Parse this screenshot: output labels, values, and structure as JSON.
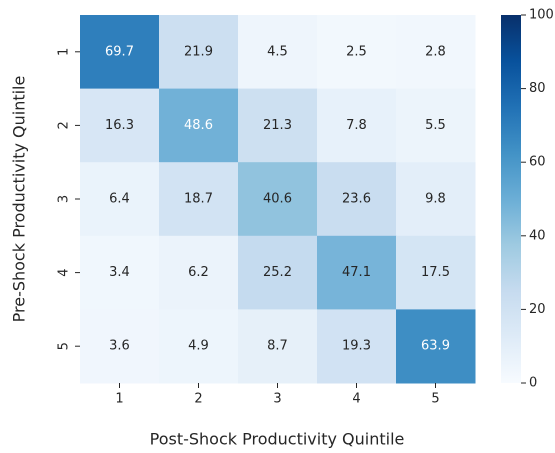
{
  "chart_data": {
    "type": "heatmap",
    "x_label": "Post-Shock Productivity Quintile",
    "y_label": "Pre-Shock Productivity Quintile",
    "x_categories": [
      "1",
      "2",
      "3",
      "4",
      "5"
    ],
    "y_categories": [
      "1",
      "2",
      "3",
      "4",
      "5"
    ],
    "values": [
      [
        69.7,
        21.9,
        4.5,
        2.5,
        2.8
      ],
      [
        16.3,
        48.6,
        21.3,
        7.8,
        5.5
      ],
      [
        6.4,
        18.7,
        40.6,
        23.6,
        9.8
      ],
      [
        3.4,
        6.2,
        25.2,
        47.1,
        17.5
      ],
      [
        3.6,
        4.9,
        8.7,
        19.3,
        63.9
      ]
    ],
    "colormap": [
      "#f7fbff",
      "#deebf7",
      "#c6dbef",
      "#9ecae1",
      "#6baed6",
      "#4292c6",
      "#2171b5",
      "#08519c",
      "#08306b"
    ],
    "clim": [
      0,
      100
    ],
    "cticks": [
      0,
      20,
      40,
      60,
      80,
      100
    ]
  }
}
